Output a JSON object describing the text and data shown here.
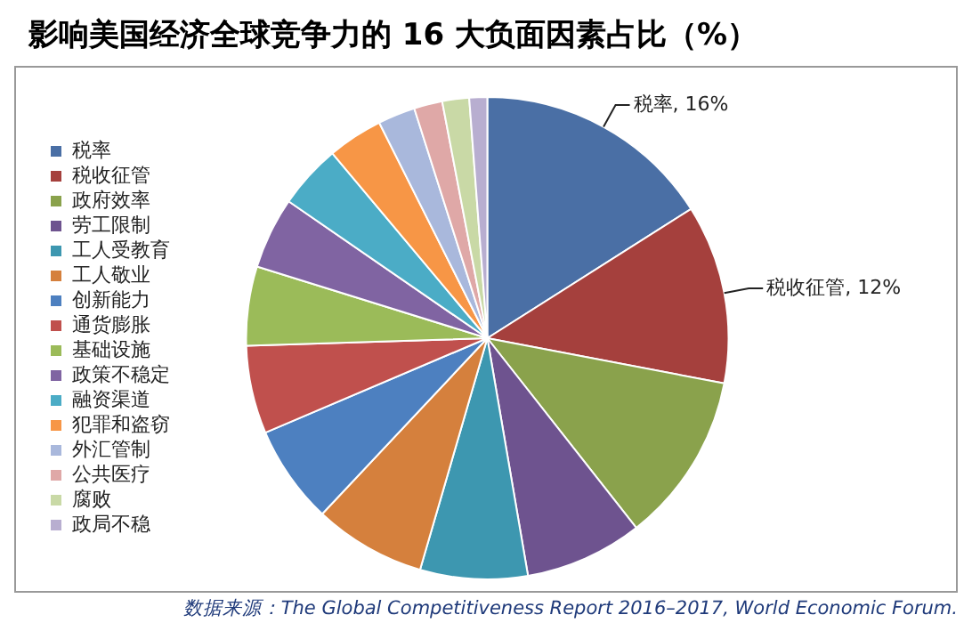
{
  "chart_data": {
    "type": "pie",
    "title": "影响美国经济全球竞争力的 16 大负面因素占比（%）",
    "categories": [
      "税率",
      "税收征管",
      "政府效率",
      "劳工限制",
      "工人受教育",
      "工人敬业",
      "创新能力",
      "通货膨胀",
      "基础设施",
      "政策不稳定",
      "融资渠道",
      "犯罪和盗窃",
      "外汇管制",
      "公共医疗",
      "腐败",
      "政局不稳"
    ],
    "values": [
      16,
      12,
      11.4,
      7.9,
      7.2,
      7.5,
      6.6,
      5.9,
      5.3,
      4.8,
      4.3,
      3.7,
      2.5,
      1.9,
      1.8,
      1.2
    ],
    "colors": [
      "#4a6fa5",
      "#a5403d",
      "#8aa24c",
      "#6e538f",
      "#3d97b0",
      "#d5803d",
      "#4d80c0",
      "#c0504d",
      "#9bbb59",
      "#8064a2",
      "#4bacc6",
      "#f79646",
      "#a9b8dc",
      "#dfa8a7",
      "#c9d9a6",
      "#b8aed0"
    ],
    "value_labels": [
      "税率, 16%",
      "税收征管, 12%",
      null,
      null,
      null,
      null,
      null,
      null,
      null,
      null,
      null,
      null,
      null,
      null,
      null,
      null
    ],
    "legend": "left",
    "annotations": [
      "数据来源：The Global Competitiveness Report 2016–2017, World Economic Forum."
    ]
  }
}
